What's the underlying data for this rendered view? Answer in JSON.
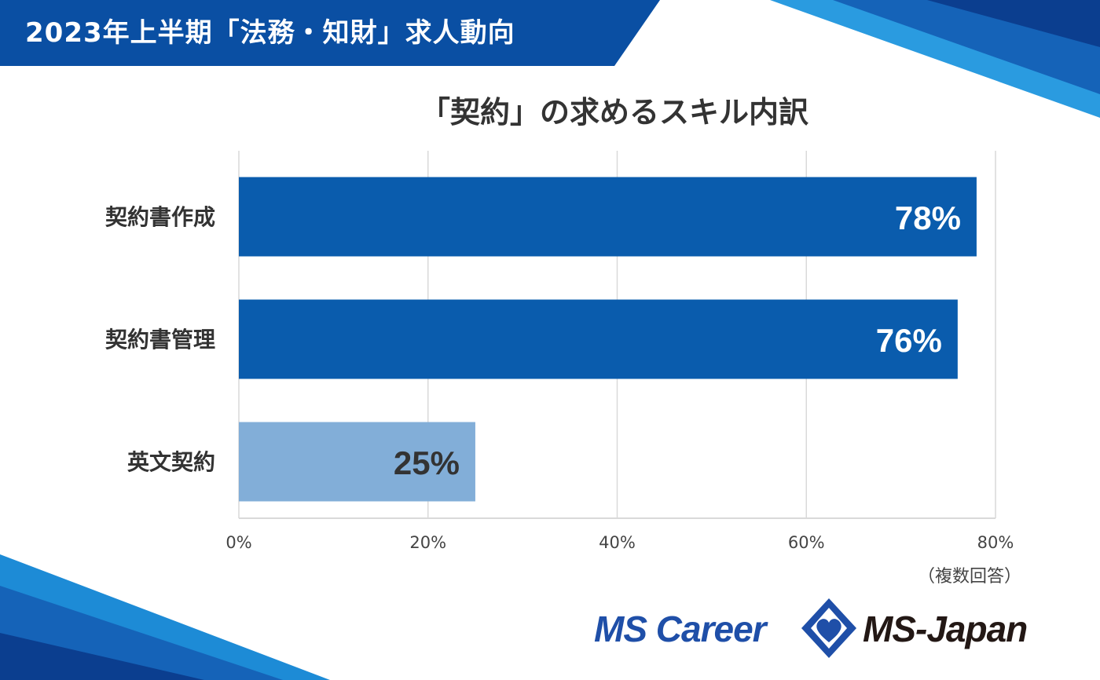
{
  "header": {
    "title": "2023年上半期「法務・知財」求人動向"
  },
  "colors": {
    "bar_dark": "#0a5cad",
    "bar_light": "#82aed8",
    "banner": "#0a4fa3",
    "accent_light": "#1d8bd6"
  },
  "chart_data": {
    "type": "bar",
    "orientation": "horizontal",
    "title": "「契約」の求めるスキル内訳",
    "categories": [
      "契約書作成",
      "契約書管理",
      "英文契約"
    ],
    "values": [
      78,
      76,
      25
    ],
    "value_labels": [
      "78%",
      "76%",
      "25%"
    ],
    "xlim": [
      0,
      80
    ],
    "xticks": [
      "0%",
      "20%",
      "40%",
      "60%",
      "80%"
    ],
    "grid": true,
    "note": "（複数回答）"
  },
  "logos": {
    "mscareer": "MS Career",
    "msjapan": "MS-Japan"
  }
}
